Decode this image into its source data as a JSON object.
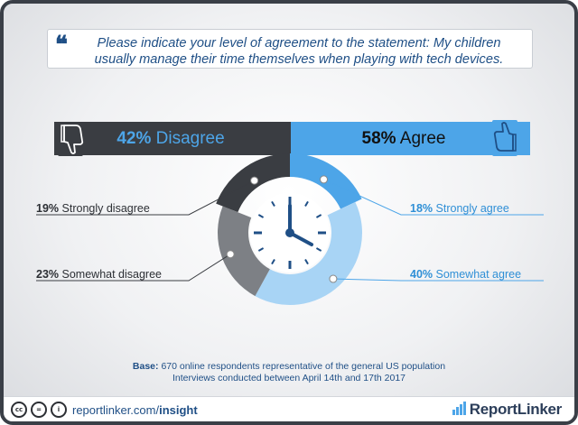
{
  "question": {
    "quote_mark": "❝",
    "text": "Please indicate your level of agreement to the statement: My children usually manage their time themselves when playing with tech devices."
  },
  "summary": {
    "disagree": {
      "pct": "42%",
      "label": "Disagree",
      "value": 42
    },
    "agree": {
      "pct": "58%",
      "label": "Agree",
      "value": 58
    }
  },
  "chart_data": {
    "type": "pie",
    "title": "",
    "slices": [
      {
        "label": "Strongly agree",
        "pct_text": "18%",
        "value": 18,
        "color": "#4da5e8"
      },
      {
        "label": "Somewhat agree",
        "pct_text": "40%",
        "value": 40,
        "color": "#a8d4f5"
      },
      {
        "label": "Somewhat disagree",
        "pct_text": "23%",
        "value": 23,
        "color": "#7d8085"
      },
      {
        "label": "Strongly disagree",
        "pct_text": "19%",
        "value": 19,
        "color": "#3a3d42"
      }
    ],
    "groups": [
      {
        "label": "Disagree",
        "value": 42,
        "color": "#3a3d42"
      },
      {
        "label": "Agree",
        "value": 58,
        "color": "#4da5e8"
      }
    ],
    "center_graphic": "clock"
  },
  "labels": {
    "strongly_disagree": {
      "pct": "19%",
      "text": "Strongly disagree"
    },
    "somewhat_disagree": {
      "pct": "23%",
      "text": "Somewhat disagree"
    },
    "strongly_agree": {
      "pct": "18%",
      "text": "Strongly agree"
    },
    "somewhat_agree": {
      "pct": "40%",
      "text": "Somewhat agree"
    }
  },
  "base": {
    "label": "Base:",
    "line1": "670 online respondents representative of the general US population",
    "line2": "Interviews conducted between April 14th and 17th 2017"
  },
  "footer": {
    "url_prefix": "reportlinker.com/",
    "url_bold": "insight",
    "brand": "ReportLinker",
    "icons": [
      "cc-icon",
      "equals-icon",
      "person-icon"
    ]
  },
  "colors": {
    "dark": "#3a3d42",
    "blue": "#4da5e8",
    "light_blue": "#a8d4f5",
    "gray": "#7d8085",
    "navy_text": "#1f4f86"
  }
}
